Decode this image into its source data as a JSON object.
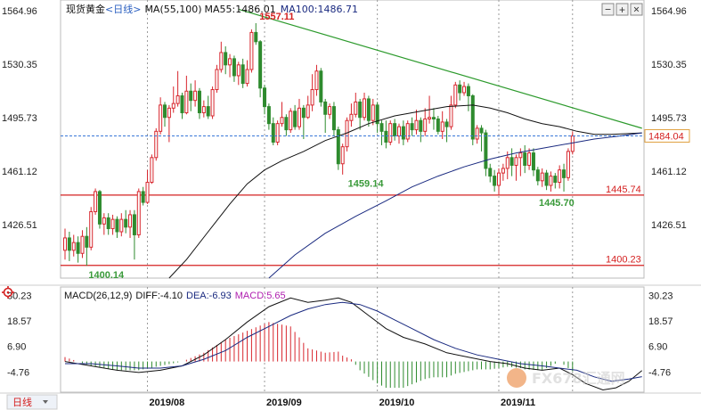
{
  "main_legend": {
    "name": "现货黄金",
    "period": "<日线>",
    "ma_label": "MA(55,100)",
    "ma55": "MA55:1486.01",
    "ma100": "MA100:1486.71"
  },
  "macd_legend": {
    "label": "MACD(26,12,9)",
    "diff": "DIFF:-4.10",
    "dea": "DEA:-6.93",
    "macd": "MACD:5.65"
  },
  "bottom": {
    "period_tab": "日线"
  },
  "controls": {
    "minus": "−",
    "plus": "+",
    "close": "×"
  },
  "watermark": {
    "text": "FX678汇通网"
  },
  "colors": {
    "up": "#d8262d",
    "down": "#2e8b2e",
    "ma55": "#111111",
    "ma100": "#1a2a80",
    "trend": "#2c9a2c",
    "support": "#d42020",
    "current": "#3a78d8",
    "tick_red": "#d42020"
  },
  "chart_data": {
    "type": "candlestick",
    "price_axis": {
      "ticks": [
        "1564.96",
        "1530.35",
        "1495.73",
        "1461.12",
        "1426.51"
      ],
      "range": [
        1392,
        1572
      ]
    },
    "macd_axis": {
      "ticks": [
        "30.23",
        "18.57",
        "6.90",
        "-4.76"
      ],
      "range": [
        -14,
        34
      ]
    },
    "date_labels": [
      "2019/08",
      "2019/09",
      "2019/10",
      "2019/11"
    ],
    "current_price": "1484.04",
    "current_value": 1484.04,
    "annotations": [
      {
        "text": "1557.11",
        "value": 1557.11,
        "color": "red"
      },
      {
        "text": "1459.14",
        "value": 1459.14,
        "color": "green"
      },
      {
        "text": "1445.70",
        "value": 1445.7,
        "color": "green"
      },
      {
        "text": "1400.14",
        "value": 1400.14,
        "color": "green"
      }
    ],
    "horizontal_lines": [
      {
        "text": "1445.74",
        "value": 1445.74
      },
      {
        "text": "1400.23",
        "value": 1400.23
      }
    ],
    "trendline": [
      {
        "day": 40,
        "value": 1566
      },
      {
        "day": 133,
        "value": 1489
      }
    ],
    "candles": [
      {
        "o": 1410,
        "c": 1418,
        "h": 1424,
        "l": 1404
      },
      {
        "o": 1418,
        "c": 1410,
        "h": 1422,
        "l": 1403
      },
      {
        "o": 1410,
        "c": 1415,
        "h": 1420,
        "l": 1406
      },
      {
        "o": 1415,
        "c": 1408,
        "h": 1419,
        "l": 1402
      },
      {
        "o": 1408,
        "c": 1419,
        "h": 1423,
        "l": 1405
      },
      {
        "o": 1419,
        "c": 1412,
        "h": 1425,
        "l": 1400
      },
      {
        "o": 1412,
        "c": 1435,
        "h": 1438,
        "l": 1410
      },
      {
        "o": 1435,
        "c": 1448,
        "h": 1450,
        "l": 1433
      },
      {
        "o": 1448,
        "c": 1427,
        "h": 1449,
        "l": 1424
      },
      {
        "o": 1427,
        "c": 1431,
        "h": 1434,
        "l": 1420
      },
      {
        "o": 1431,
        "c": 1424,
        "h": 1434,
        "l": 1420
      },
      {
        "o": 1424,
        "c": 1430,
        "h": 1433,
        "l": 1420
      },
      {
        "o": 1430,
        "c": 1422,
        "h": 1432,
        "l": 1418
      },
      {
        "o": 1422,
        "c": 1430,
        "h": 1434,
        "l": 1419
      },
      {
        "o": 1430,
        "c": 1425,
        "h": 1436,
        "l": 1421
      },
      {
        "o": 1425,
        "c": 1433,
        "h": 1436,
        "l": 1418
      },
      {
        "o": 1433,
        "c": 1420,
        "h": 1436,
        "l": 1404
      },
      {
        "o": 1420,
        "c": 1448,
        "h": 1450,
        "l": 1418
      },
      {
        "o": 1448,
        "c": 1441,
        "h": 1451,
        "l": 1439
      },
      {
        "o": 1441,
        "c": 1454,
        "h": 1462,
        "l": 1440
      },
      {
        "o": 1454,
        "c": 1470,
        "h": 1472,
        "l": 1453
      },
      {
        "o": 1470,
        "c": 1487,
        "h": 1489,
        "l": 1468
      },
      {
        "o": 1487,
        "c": 1504,
        "h": 1509,
        "l": 1485
      },
      {
        "o": 1504,
        "c": 1496,
        "h": 1506,
        "l": 1490
      },
      {
        "o": 1496,
        "c": 1502,
        "h": 1504,
        "l": 1480
      },
      {
        "o": 1502,
        "c": 1505,
        "h": 1516,
        "l": 1499
      },
      {
        "o": 1505,
        "c": 1510,
        "h": 1526,
        "l": 1503
      },
      {
        "o": 1510,
        "c": 1499,
        "h": 1512,
        "l": 1495
      },
      {
        "o": 1499,
        "c": 1513,
        "h": 1523,
        "l": 1498
      },
      {
        "o": 1513,
        "c": 1507,
        "h": 1518,
        "l": 1500
      },
      {
        "o": 1507,
        "c": 1513,
        "h": 1520,
        "l": 1503
      },
      {
        "o": 1513,
        "c": 1499,
        "h": 1515,
        "l": 1495
      },
      {
        "o": 1499,
        "c": 1503,
        "h": 1507,
        "l": 1496
      },
      {
        "o": 1503,
        "c": 1497,
        "h": 1510,
        "l": 1495
      },
      {
        "o": 1497,
        "c": 1514,
        "h": 1516,
        "l": 1495
      },
      {
        "o": 1514,
        "c": 1527,
        "h": 1530,
        "l": 1512
      },
      {
        "o": 1527,
        "c": 1538,
        "h": 1545,
        "l": 1525
      },
      {
        "o": 1538,
        "c": 1530,
        "h": 1542,
        "l": 1524
      },
      {
        "o": 1530,
        "c": 1534,
        "h": 1537,
        "l": 1522
      },
      {
        "o": 1534,
        "c": 1523,
        "h": 1536,
        "l": 1519
      },
      {
        "o": 1523,
        "c": 1530,
        "h": 1532,
        "l": 1517
      },
      {
        "o": 1530,
        "c": 1518,
        "h": 1534,
        "l": 1515
      },
      {
        "o": 1518,
        "c": 1527,
        "h": 1533,
        "l": 1516
      },
      {
        "o": 1527,
        "c": 1551,
        "h": 1553,
        "l": 1525
      },
      {
        "o": 1551,
        "c": 1545,
        "h": 1557,
        "l": 1543
      },
      {
        "o": 1545,
        "c": 1515,
        "h": 1546,
        "l": 1509
      },
      {
        "o": 1515,
        "c": 1503,
        "h": 1517,
        "l": 1498
      },
      {
        "o": 1503,
        "c": 1492,
        "h": 1505,
        "l": 1488
      },
      {
        "o": 1492,
        "c": 1480,
        "h": 1496,
        "l": 1478
      },
      {
        "o": 1480,
        "c": 1492,
        "h": 1494,
        "l": 1478
      },
      {
        "o": 1492,
        "c": 1496,
        "h": 1506,
        "l": 1490
      },
      {
        "o": 1496,
        "c": 1488,
        "h": 1498,
        "l": 1484
      },
      {
        "o": 1488,
        "c": 1500,
        "h": 1502,
        "l": 1486
      },
      {
        "o": 1500,
        "c": 1490,
        "h": 1504,
        "l": 1488
      },
      {
        "o": 1490,
        "c": 1502,
        "h": 1508,
        "l": 1488
      },
      {
        "o": 1502,
        "c": 1496,
        "h": 1504,
        "l": 1482
      },
      {
        "o": 1496,
        "c": 1504,
        "h": 1510,
        "l": 1495
      },
      {
        "o": 1504,
        "c": 1514,
        "h": 1524,
        "l": 1500
      },
      {
        "o": 1514,
        "c": 1526,
        "h": 1530,
        "l": 1510
      },
      {
        "o": 1526,
        "c": 1506,
        "h": 1528,
        "l": 1503
      },
      {
        "o": 1506,
        "c": 1498,
        "h": 1508,
        "l": 1486
      },
      {
        "o": 1498,
        "c": 1503,
        "h": 1505,
        "l": 1495
      },
      {
        "o": 1503,
        "c": 1488,
        "h": 1506,
        "l": 1484
      },
      {
        "o": 1488,
        "c": 1466,
        "h": 1490,
        "l": 1462
      },
      {
        "o": 1466,
        "c": 1477,
        "h": 1479,
        "l": 1459
      },
      {
        "o": 1477,
        "c": 1494,
        "h": 1496,
        "l": 1474
      },
      {
        "o": 1494,
        "c": 1498,
        "h": 1505,
        "l": 1490
      },
      {
        "o": 1498,
        "c": 1506,
        "h": 1512,
        "l": 1496
      },
      {
        "o": 1506,
        "c": 1496,
        "h": 1508,
        "l": 1488
      },
      {
        "o": 1496,
        "c": 1508,
        "h": 1512,
        "l": 1494
      },
      {
        "o": 1508,
        "c": 1494,
        "h": 1510,
        "l": 1490
      },
      {
        "o": 1494,
        "c": 1504,
        "h": 1508,
        "l": 1491
      },
      {
        "o": 1504,
        "c": 1492,
        "h": 1506,
        "l": 1486
      },
      {
        "o": 1492,
        "c": 1487,
        "h": 1494,
        "l": 1478
      },
      {
        "o": 1487,
        "c": 1480,
        "h": 1494,
        "l": 1476
      },
      {
        "o": 1480,
        "c": 1492,
        "h": 1494,
        "l": 1478
      },
      {
        "o": 1492,
        "c": 1484,
        "h": 1495,
        "l": 1481
      },
      {
        "o": 1484,
        "c": 1490,
        "h": 1492,
        "l": 1479
      },
      {
        "o": 1490,
        "c": 1482,
        "h": 1494,
        "l": 1478
      },
      {
        "o": 1482,
        "c": 1492,
        "h": 1494,
        "l": 1480
      },
      {
        "o": 1492,
        "c": 1488,
        "h": 1496,
        "l": 1484
      },
      {
        "o": 1488,
        "c": 1494,
        "h": 1501,
        "l": 1485
      },
      {
        "o": 1494,
        "c": 1487,
        "h": 1496,
        "l": 1480
      },
      {
        "o": 1487,
        "c": 1495,
        "h": 1502,
        "l": 1484
      },
      {
        "o": 1495,
        "c": 1496,
        "h": 1510,
        "l": 1492
      },
      {
        "o": 1496,
        "c": 1495,
        "h": 1502,
        "l": 1488
      },
      {
        "o": 1495,
        "c": 1487,
        "h": 1497,
        "l": 1485
      },
      {
        "o": 1487,
        "c": 1493,
        "h": 1500,
        "l": 1482
      },
      {
        "o": 1493,
        "c": 1490,
        "h": 1495,
        "l": 1480
      },
      {
        "o": 1490,
        "c": 1504,
        "h": 1510,
        "l": 1488
      },
      {
        "o": 1504,
        "c": 1517,
        "h": 1519,
        "l": 1502
      },
      {
        "o": 1517,
        "c": 1512,
        "h": 1520,
        "l": 1507
      },
      {
        "o": 1512,
        "c": 1516,
        "h": 1519,
        "l": 1510
      },
      {
        "o": 1516,
        "c": 1510,
        "h": 1518,
        "l": 1500
      },
      {
        "o": 1510,
        "c": 1482,
        "h": 1511,
        "l": 1478
      },
      {
        "o": 1482,
        "c": 1489,
        "h": 1491,
        "l": 1479
      },
      {
        "o": 1489,
        "c": 1486,
        "h": 1491,
        "l": 1474
      },
      {
        "o": 1486,
        "c": 1463,
        "h": 1488,
        "l": 1458
      },
      {
        "o": 1463,
        "c": 1458,
        "h": 1466,
        "l": 1454
      },
      {
        "o": 1458,
        "c": 1452,
        "h": 1462,
        "l": 1448
      },
      {
        "o": 1452,
        "c": 1460,
        "h": 1463,
        "l": 1446
      },
      {
        "o": 1460,
        "c": 1463,
        "h": 1466,
        "l": 1455
      },
      {
        "o": 1463,
        "c": 1470,
        "h": 1474,
        "l": 1456
      },
      {
        "o": 1470,
        "c": 1465,
        "h": 1476,
        "l": 1458
      },
      {
        "o": 1465,
        "c": 1470,
        "h": 1472,
        "l": 1455
      },
      {
        "o": 1470,
        "c": 1473,
        "h": 1476,
        "l": 1458
      },
      {
        "o": 1473,
        "c": 1465,
        "h": 1478,
        "l": 1460
      },
      {
        "o": 1465,
        "c": 1473,
        "h": 1476,
        "l": 1462
      },
      {
        "o": 1473,
        "c": 1462,
        "h": 1476,
        "l": 1458
      },
      {
        "o": 1462,
        "c": 1455,
        "h": 1464,
        "l": 1452
      },
      {
        "o": 1455,
        "c": 1460,
        "h": 1463,
        "l": 1451
      },
      {
        "o": 1460,
        "c": 1452,
        "h": 1462,
        "l": 1449
      },
      {
        "o": 1452,
        "c": 1458,
        "h": 1461,
        "l": 1448
      },
      {
        "o": 1458,
        "c": 1454,
        "h": 1460,
        "l": 1450
      },
      {
        "o": 1454,
        "c": 1462,
        "h": 1465,
        "l": 1450
      },
      {
        "o": 1462,
        "c": 1457,
        "h": 1466,
        "l": 1448
      },
      {
        "o": 1457,
        "c": 1474,
        "h": 1476,
        "l": 1455
      },
      {
        "o": 1474,
        "c": 1484,
        "h": 1487,
        "l": 1472
      }
    ],
    "ma55": [
      {
        "day": 24,
        "value": 1392
      },
      {
        "day": 28,
        "value": 1404
      },
      {
        "day": 33,
        "value": 1422
      },
      {
        "day": 38,
        "value": 1440
      },
      {
        "day": 42,
        "value": 1453
      },
      {
        "day": 46,
        "value": 1462
      },
      {
        "day": 50,
        "value": 1468
      },
      {
        "day": 55,
        "value": 1474
      },
      {
        "day": 60,
        "value": 1481
      },
      {
        "day": 65,
        "value": 1486
      },
      {
        "day": 70,
        "value": 1492
      },
      {
        "day": 76,
        "value": 1497
      },
      {
        "day": 82,
        "value": 1500
      },
      {
        "day": 88,
        "value": 1503
      },
      {
        "day": 94,
        "value": 1504
      },
      {
        "day": 98,
        "value": 1502
      },
      {
        "day": 102,
        "value": 1499
      },
      {
        "day": 106,
        "value": 1495
      },
      {
        "day": 110,
        "value": 1492
      },
      {
        "day": 114,
        "value": 1490
      },
      {
        "day": 118,
        "value": 1487
      },
      {
        "day": 122,
        "value": 1485
      },
      {
        "day": 126,
        "value": 1485
      },
      {
        "day": 133,
        "value": 1486
      }
    ],
    "ma100": [
      {
        "day": 47,
        "value": 1392
      },
      {
        "day": 53,
        "value": 1407
      },
      {
        "day": 60,
        "value": 1421
      },
      {
        "day": 67,
        "value": 1432
      },
      {
        "day": 74,
        "value": 1442
      },
      {
        "day": 80,
        "value": 1451
      },
      {
        "day": 86,
        "value": 1458
      },
      {
        "day": 92,
        "value": 1464
      },
      {
        "day": 98,
        "value": 1469
      },
      {
        "day": 104,
        "value": 1473
      },
      {
        "day": 110,
        "value": 1476
      },
      {
        "day": 116,
        "value": 1479
      },
      {
        "day": 122,
        "value": 1482
      },
      {
        "day": 128,
        "value": 1484
      },
      {
        "day": 133,
        "value": 1486
      }
    ],
    "macd_diff": [
      {
        "day": 0,
        "value": 0
      },
      {
        "day": 6,
        "value": -2
      },
      {
        "day": 12,
        "value": -4
      },
      {
        "day": 17,
        "value": -5
      },
      {
        "day": 22,
        "value": -4
      },
      {
        "day": 27,
        "value": -2
      },
      {
        "day": 32,
        "value": 3
      },
      {
        "day": 37,
        "value": 10
      },
      {
        "day": 42,
        "value": 18
      },
      {
        "day": 47,
        "value": 25
      },
      {
        "day": 52,
        "value": 29
      },
      {
        "day": 56,
        "value": 27
      },
      {
        "day": 60,
        "value": 28
      },
      {
        "day": 63,
        "value": 29
      },
      {
        "day": 66,
        "value": 27
      },
      {
        "day": 70,
        "value": 21
      },
      {
        "day": 74,
        "value": 15
      },
      {
        "day": 78,
        "value": 11
      },
      {
        "day": 83,
        "value": 8
      },
      {
        "day": 88,
        "value": 4
      },
      {
        "day": 93,
        "value": 2
      },
      {
        "day": 98,
        "value": 0
      },
      {
        "day": 102,
        "value": -1
      },
      {
        "day": 106,
        "value": -3
      },
      {
        "day": 110,
        "value": -4
      },
      {
        "day": 114,
        "value": -3
      },
      {
        "day": 117,
        "value": -6
      },
      {
        "day": 120,
        "value": -10
      },
      {
        "day": 124,
        "value": -13
      },
      {
        "day": 127,
        "value": -12
      },
      {
        "day": 130,
        "value": -9
      },
      {
        "day": 133,
        "value": -4.1
      }
    ],
    "macd_dea": [
      {
        "day": 0,
        "value": -1
      },
      {
        "day": 6,
        "value": -1
      },
      {
        "day": 12,
        "value": -2
      },
      {
        "day": 17,
        "value": -3
      },
      {
        "day": 22,
        "value": -3
      },
      {
        "day": 27,
        "value": -2
      },
      {
        "day": 32,
        "value": 1
      },
      {
        "day": 37,
        "value": 5
      },
      {
        "day": 42,
        "value": 11
      },
      {
        "day": 47,
        "value": 16
      },
      {
        "day": 52,
        "value": 21
      },
      {
        "day": 56,
        "value": 24
      },
      {
        "day": 60,
        "value": 26
      },
      {
        "day": 64,
        "value": 27
      },
      {
        "day": 68,
        "value": 26
      },
      {
        "day": 72,
        "value": 23
      },
      {
        "day": 76,
        "value": 19
      },
      {
        "day": 80,
        "value": 15
      },
      {
        "day": 85,
        "value": 10
      },
      {
        "day": 90,
        "value": 6
      },
      {
        "day": 95,
        "value": 3
      },
      {
        "day": 100,
        "value": 1
      },
      {
        "day": 105,
        "value": -1
      },
      {
        "day": 110,
        "value": -2
      },
      {
        "day": 114,
        "value": -3
      },
      {
        "day": 118,
        "value": -4
      },
      {
        "day": 122,
        "value": -7
      },
      {
        "day": 126,
        "value": -9
      },
      {
        "day": 130,
        "value": -8
      },
      {
        "day": 133,
        "value": -6.93
      }
    ]
  }
}
